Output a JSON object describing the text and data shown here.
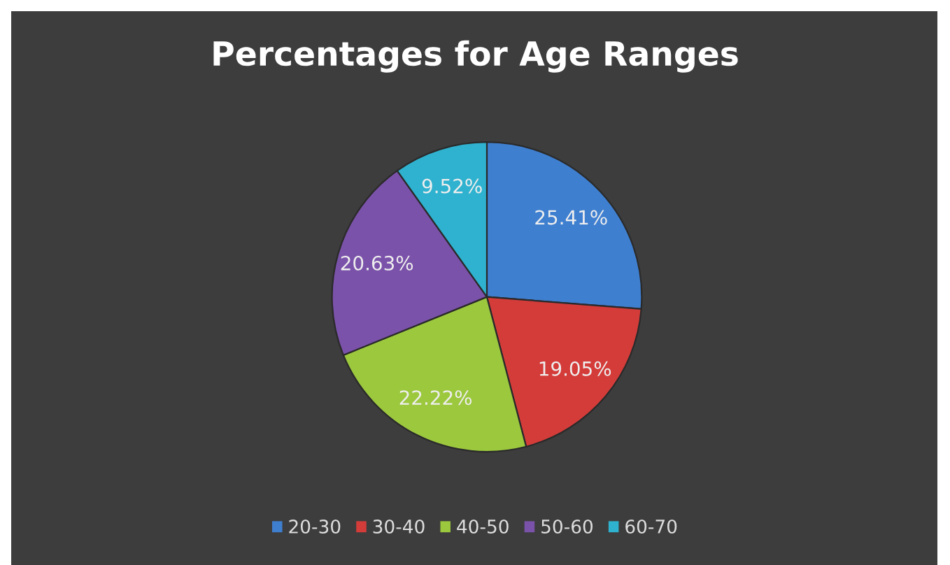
{
  "chart_data": {
    "type": "pie",
    "title": "Percentages for Age Ranges",
    "categories": [
      "20-30",
      "30-40",
      "40-50",
      "50-60",
      "60-70"
    ],
    "values": [
      25.41,
      19.05,
      22.22,
      20.63,
      9.52
    ],
    "colors": [
      "#3f7fd0",
      "#d43c3a",
      "#9cc83e",
      "#7b52aa",
      "#2fb2cf"
    ],
    "value_labels": [
      "25.41%",
      "19.05%",
      "22.22%",
      "20.63%",
      "9.52%"
    ],
    "legend": "bottom"
  }
}
